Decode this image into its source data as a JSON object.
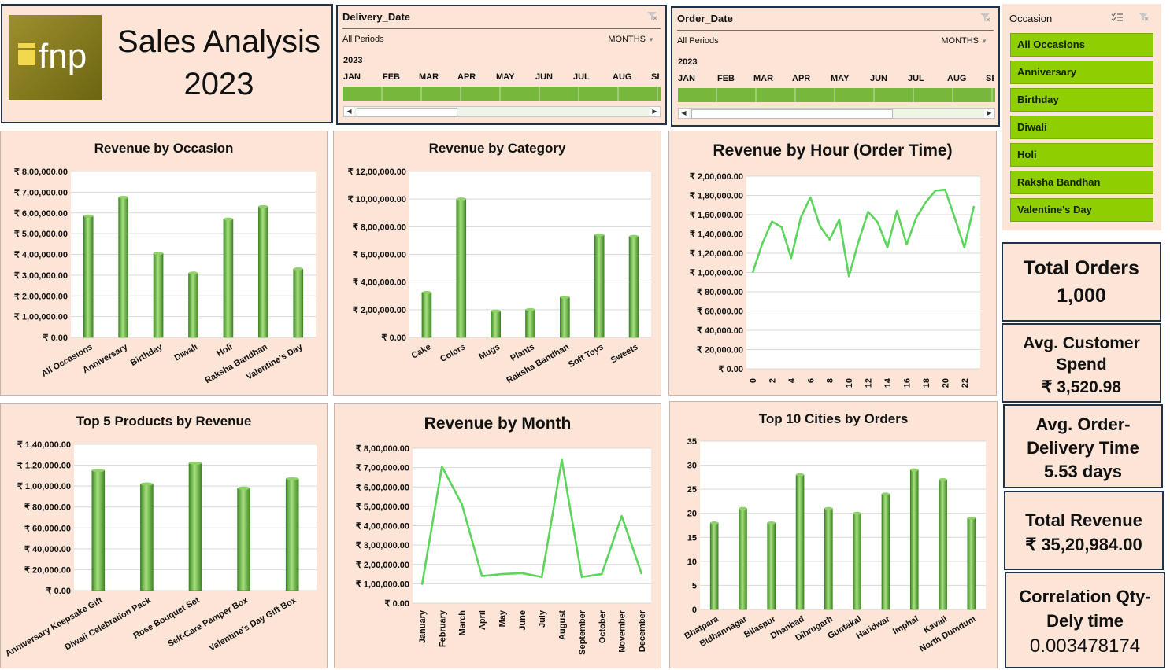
{
  "header": {
    "logo_text": "fnp",
    "title_line1": "Sales Analysis",
    "title_line2": "2023"
  },
  "slicers": {
    "delivery": {
      "title": "Delivery_Date",
      "period": "All Periods",
      "unit": "MONTHS",
      "year": "2023",
      "months": [
        "JAN",
        "FEB",
        "MAR",
        "APR",
        "MAY",
        "JUN",
        "JUL",
        "AUG",
        "SE"
      ]
    },
    "order": {
      "title": "Order_Date",
      "period": "All Periods",
      "unit": "MONTHS",
      "year": "2023",
      "months": [
        "JAN",
        "FEB",
        "MAR",
        "APR",
        "MAY",
        "JUN",
        "JUL",
        "AUG",
        "SE"
      ]
    },
    "occasion": {
      "title": "Occasion",
      "items": [
        "All Occasions",
        "Anniversary",
        "Birthday",
        "Diwali",
        "Holi",
        "Raksha Bandhan",
        "Valentine's Day"
      ]
    }
  },
  "kpis": {
    "total_orders_label": "Total Orders",
    "total_orders_value": "1,000",
    "avg_spend_label1": "Avg. Customer",
    "avg_spend_label2": "Spend",
    "avg_spend_value": "₹ 3,520.98",
    "avg_delivery_label1": "Avg. Order-",
    "avg_delivery_label2": "Delivery Time",
    "avg_delivery_value": "5.53 days",
    "total_revenue_label": "Total Revenue",
    "total_revenue_value": "₹ 35,20,984.00",
    "correlation_label1": "Correlation Qty-",
    "correlation_label2": "Dely time",
    "correlation_value": "0.003478174"
  },
  "colors": {
    "panel": "#fce4d6",
    "bar": "#6fbf45",
    "line": "#5dd55d",
    "slicer_green": "#8fce00",
    "border_dark": "#1f3247"
  },
  "chart_data": [
    {
      "id": "occasion",
      "type": "bar",
      "title": "Revenue by Occasion",
      "categories": [
        "All Occasions",
        "Anniversary",
        "Birthday",
        "Diwali",
        "Holi",
        "Raksha Bandhan",
        "Valentine's Day"
      ],
      "values": [
        585000,
        675000,
        405000,
        310000,
        570000,
        630000,
        330000
      ],
      "ylim": [
        0,
        800000
      ],
      "yticks": [
        "₹ 0.00",
        "₹ 1,00,000.00",
        "₹ 2,00,000.00",
        "₹ 3,00,000.00",
        "₹ 4,00,000.00",
        "₹ 5,00,000.00",
        "₹ 6,00,000.00",
        "₹ 7,00,000.00",
        "₹ 8,00,000.00"
      ]
    },
    {
      "id": "category",
      "type": "bar",
      "title": "Revenue by Category",
      "categories": [
        "Cake",
        "Colors",
        "Mugs",
        "Plants",
        "Raksha Bandhan",
        "Soft Toys",
        "Sweets"
      ],
      "values": [
        325000,
        1000000,
        190000,
        200000,
        290000,
        740000,
        730000
      ],
      "ylim": [
        0,
        1200000
      ],
      "yticks": [
        "₹ 0.00",
        "₹ 2,00,000.00",
        "₹ 4,00,000.00",
        "₹ 6,00,000.00",
        "₹ 8,00,000.00",
        "₹ 10,00,000.00",
        "₹ 12,00,000.00"
      ]
    },
    {
      "id": "hour",
      "type": "line",
      "title": "Revenue by Hour (Order Time)",
      "x": [
        0,
        1,
        2,
        3,
        4,
        5,
        6,
        7,
        8,
        9,
        10,
        11,
        12,
        13,
        14,
        15,
        16,
        17,
        18,
        19,
        20,
        21,
        22,
        23
      ],
      "values": [
        100000,
        130000,
        153000,
        147000,
        115000,
        157000,
        178000,
        148000,
        134000,
        155000,
        96000,
        132000,
        163000,
        152000,
        126000,
        164000,
        129000,
        157000,
        173000,
        185000,
        186000,
        157000,
        126000,
        169000
      ],
      "ylim": [
        0,
        200000
      ],
      "yticks": [
        "₹ 0.00",
        "₹ 20,000.00",
        "₹ 40,000.00",
        "₹ 60,000.00",
        "₹ 80,000.00",
        "₹ 1,00,000.00",
        "₹ 1,20,000.00",
        "₹ 1,40,000.00",
        "₹ 1,60,000.00",
        "₹ 1,80,000.00",
        "₹ 2,00,000.00"
      ],
      "xticks": [
        "0",
        "2",
        "4",
        "6",
        "8",
        "10",
        "12",
        "14",
        "16",
        "18",
        "20",
        "22"
      ]
    },
    {
      "id": "products",
      "type": "bar",
      "title": "Top 5 Products by Revenue",
      "categories": [
        "Anniversary Keepsake Gift",
        "Diwali Celebration Pack",
        "Rose Bouquet Set",
        "Self-Care Pamper Box",
        "Valentine's Day Gift Box"
      ],
      "values": [
        115000,
        102000,
        122000,
        98000,
        107000
      ],
      "ylim": [
        0,
        140000
      ],
      "yticks": [
        "₹ 0.00",
        "₹ 20,000.00",
        "₹ 40,000.00",
        "₹ 60,000.00",
        "₹ 80,000.00",
        "₹ 1,00,000.00",
        "₹ 1,20,000.00",
        "₹ 1,40,000.00"
      ]
    },
    {
      "id": "month",
      "type": "line",
      "title": "Revenue by Month",
      "categories": [
        "January",
        "February",
        "March",
        "April",
        "May",
        "June",
        "July",
        "August",
        "September",
        "October",
        "November",
        "December"
      ],
      "values": [
        95000,
        705000,
        510000,
        140000,
        150000,
        155000,
        135000,
        740000,
        135000,
        150000,
        450000,
        150000
      ],
      "ylim": [
        0,
        800000
      ],
      "yticks": [
        "₹ 0.00",
        "₹ 1,00,000.00",
        "₹ 2,00,000.00",
        "₹ 3,00,000.00",
        "₹ 4,00,000.00",
        "₹ 5,00,000.00",
        "₹ 6,00,000.00",
        "₹ 7,00,000.00",
        "₹ 8,00,000.00"
      ]
    },
    {
      "id": "cities",
      "type": "bar",
      "title": "Top 10 Cities by Orders",
      "categories": [
        "Bhatpara",
        "Bidhannagar",
        "Bilaspur",
        "Dhanbad",
        "Dibrugarh",
        "Guntakal",
        "Haridwar",
        "Imphal",
        "Kavali",
        "North Dumdum"
      ],
      "values": [
        18,
        21,
        18,
        28,
        21,
        20,
        24,
        29,
        27,
        19
      ],
      "ylim": [
        0,
        35
      ],
      "yticks": [
        "0",
        "5",
        "10",
        "15",
        "20",
        "25",
        "30",
        "35"
      ]
    }
  ]
}
